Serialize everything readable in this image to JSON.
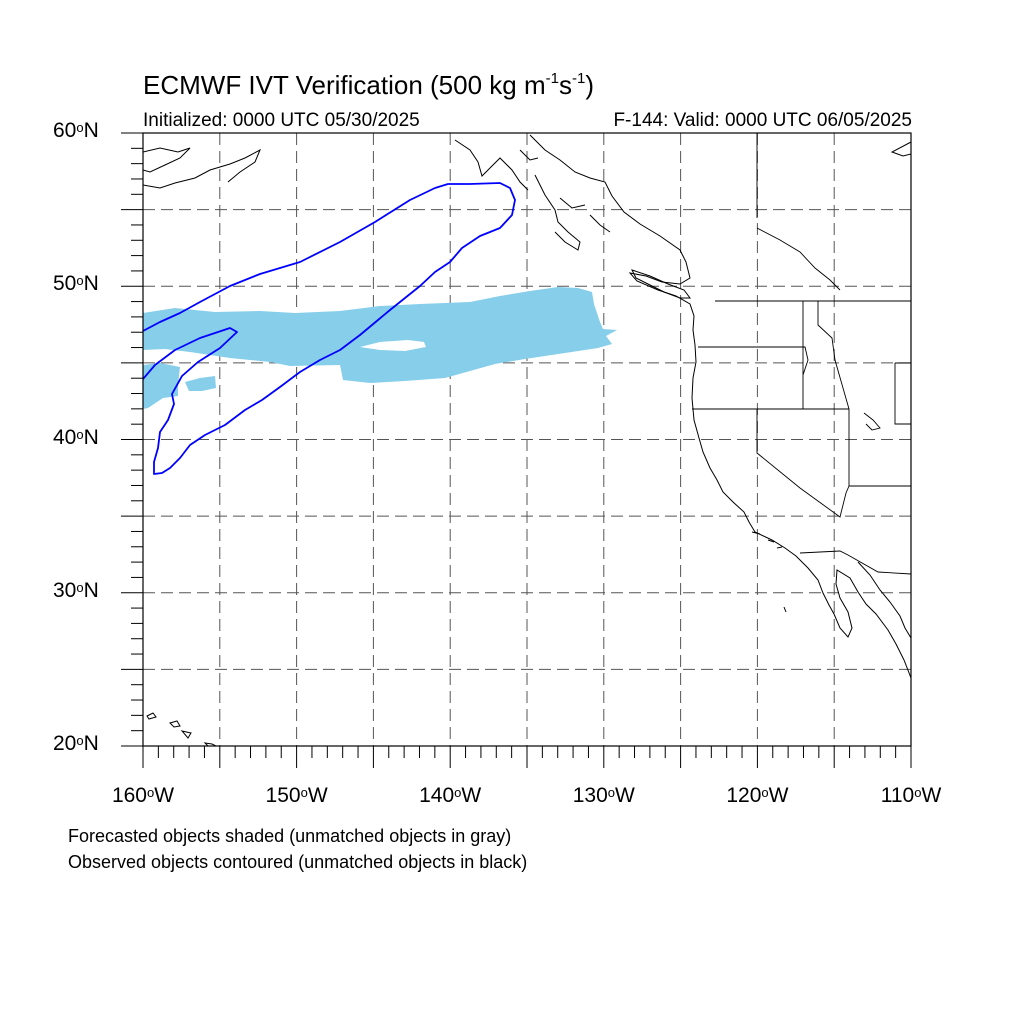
{
  "header": {
    "title_prefix": "ECMWF IVT Verification (500 kg m",
    "title_exp1": "-1",
    "title_mid": "s",
    "title_exp2": "-1",
    "title_suffix": ")",
    "initialized": "Initialized: 0000 UTC 05/30/2025",
    "valid": "F-144: Valid: 0000 UTC 06/05/2025"
  },
  "axes": {
    "lat_labels": [
      {
        "value": 60,
        "text": "60",
        "hemi": "N"
      },
      {
        "value": 50,
        "text": "50",
        "hemi": "N"
      },
      {
        "value": 40,
        "text": "40",
        "hemi": "N"
      },
      {
        "value": 30,
        "text": "30",
        "hemi": "N"
      },
      {
        "value": 20,
        "text": "20",
        "hemi": "N"
      }
    ],
    "lon_labels": [
      {
        "value": -160,
        "text": "160",
        "hemi": "W"
      },
      {
        "value": -150,
        "text": "150",
        "hemi": "W"
      },
      {
        "value": -140,
        "text": "140",
        "hemi": "W"
      },
      {
        "value": -130,
        "text": "130",
        "hemi": "W"
      },
      {
        "value": -120,
        "text": "120",
        "hemi": "W"
      },
      {
        "value": -110,
        "text": "110",
        "hemi": "W"
      }
    ],
    "degree_symbol": "o",
    "lon_range": [
      -160,
      -110
    ],
    "lat_range": [
      20,
      60
    ],
    "grid_interval": 5,
    "grid_style": "dashed"
  },
  "legend": {
    "line1": "Forecasted objects shaded (unmatched objects in gray)",
    "line2": "Observed objects contoured (unmatched objects in black)"
  },
  "colors": {
    "forecast_fill": "#87ceeb",
    "observed_contour": "#0000ff",
    "coastline": "#000000",
    "grid": "#555555"
  }
}
